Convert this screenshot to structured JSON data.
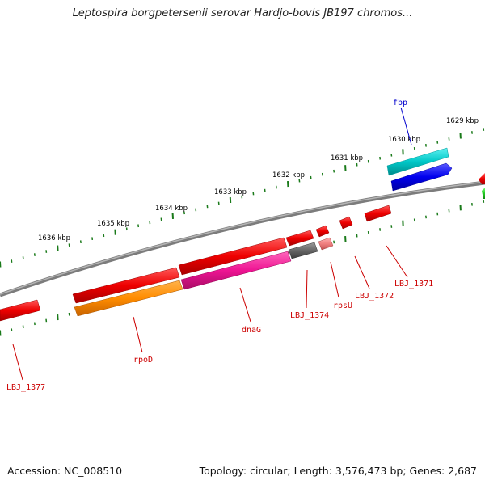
{
  "title": "Leptospira borgpetersenii serovar Hardjo-bovis JB197 chromos...",
  "footer": {
    "accession": "Accession: NC_008510",
    "summary": "Topology: circular; Length: 3,576,473 bp; Genes: 2,687"
  },
  "scale_labels": [
    "1629 kbp",
    "1630 kbp",
    "1631 kbp",
    "1632 kbp",
    "1633 kbp",
    "1634 kbp",
    "1635 kbp",
    "1636 kbp"
  ],
  "gene_labels": {
    "fbp": "fbp",
    "LBJ_1371": "LBJ_1371",
    "LBJ_1372": "LBJ_1372",
    "rpsU": "rpsU",
    "LBJ_1374": "LBJ_1374",
    "dnaG": "dnaG",
    "rpoD": "rpoD",
    "LBJ_1377": "LBJ_1377"
  },
  "colors": {
    "backbone": "#808080",
    "tick": "#1a7a1a",
    "red": "#ee0000",
    "orange": "#ff8c00",
    "pink": "#ee1493",
    "gray": "#666666",
    "light_red": "#f08080",
    "cyan": "#00c8c8",
    "blue": "#0000ee",
    "green": "#22cc22",
    "label_red": "#cc0000",
    "label_blue": "#0000cc"
  }
}
